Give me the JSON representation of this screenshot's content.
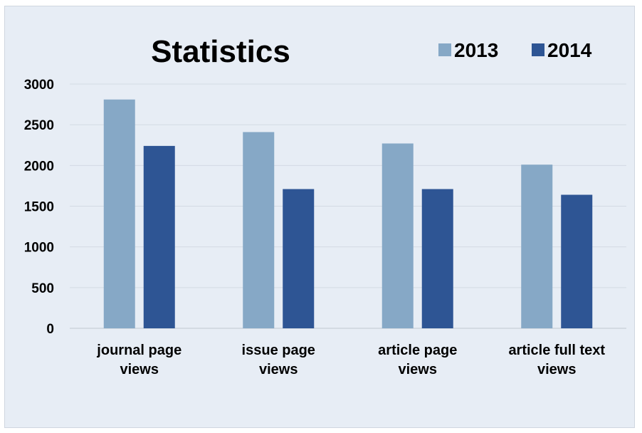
{
  "chart_data": {
    "type": "bar",
    "title": "Statistics",
    "xlabel": "",
    "ylabel": "",
    "ylim": [
      0,
      3000
    ],
    "yticks": [
      "0",
      "500",
      "1000",
      "1500",
      "2000",
      "2500",
      "3000"
    ],
    "grid": true,
    "legend_position": "top-right",
    "categories": [
      [
        "journal page",
        "views"
      ],
      [
        "issue page",
        "views"
      ],
      [
        "article page",
        "views"
      ],
      [
        "article full text",
        "views"
      ]
    ],
    "series": [
      {
        "name": "2013",
        "color": "#86A8C6",
        "values": [
          2810,
          2410,
          2270,
          2010
        ]
      },
      {
        "name": "2014",
        "color": "#2E5594",
        "values": [
          2240,
          1710,
          1710,
          1640
        ]
      }
    ]
  }
}
